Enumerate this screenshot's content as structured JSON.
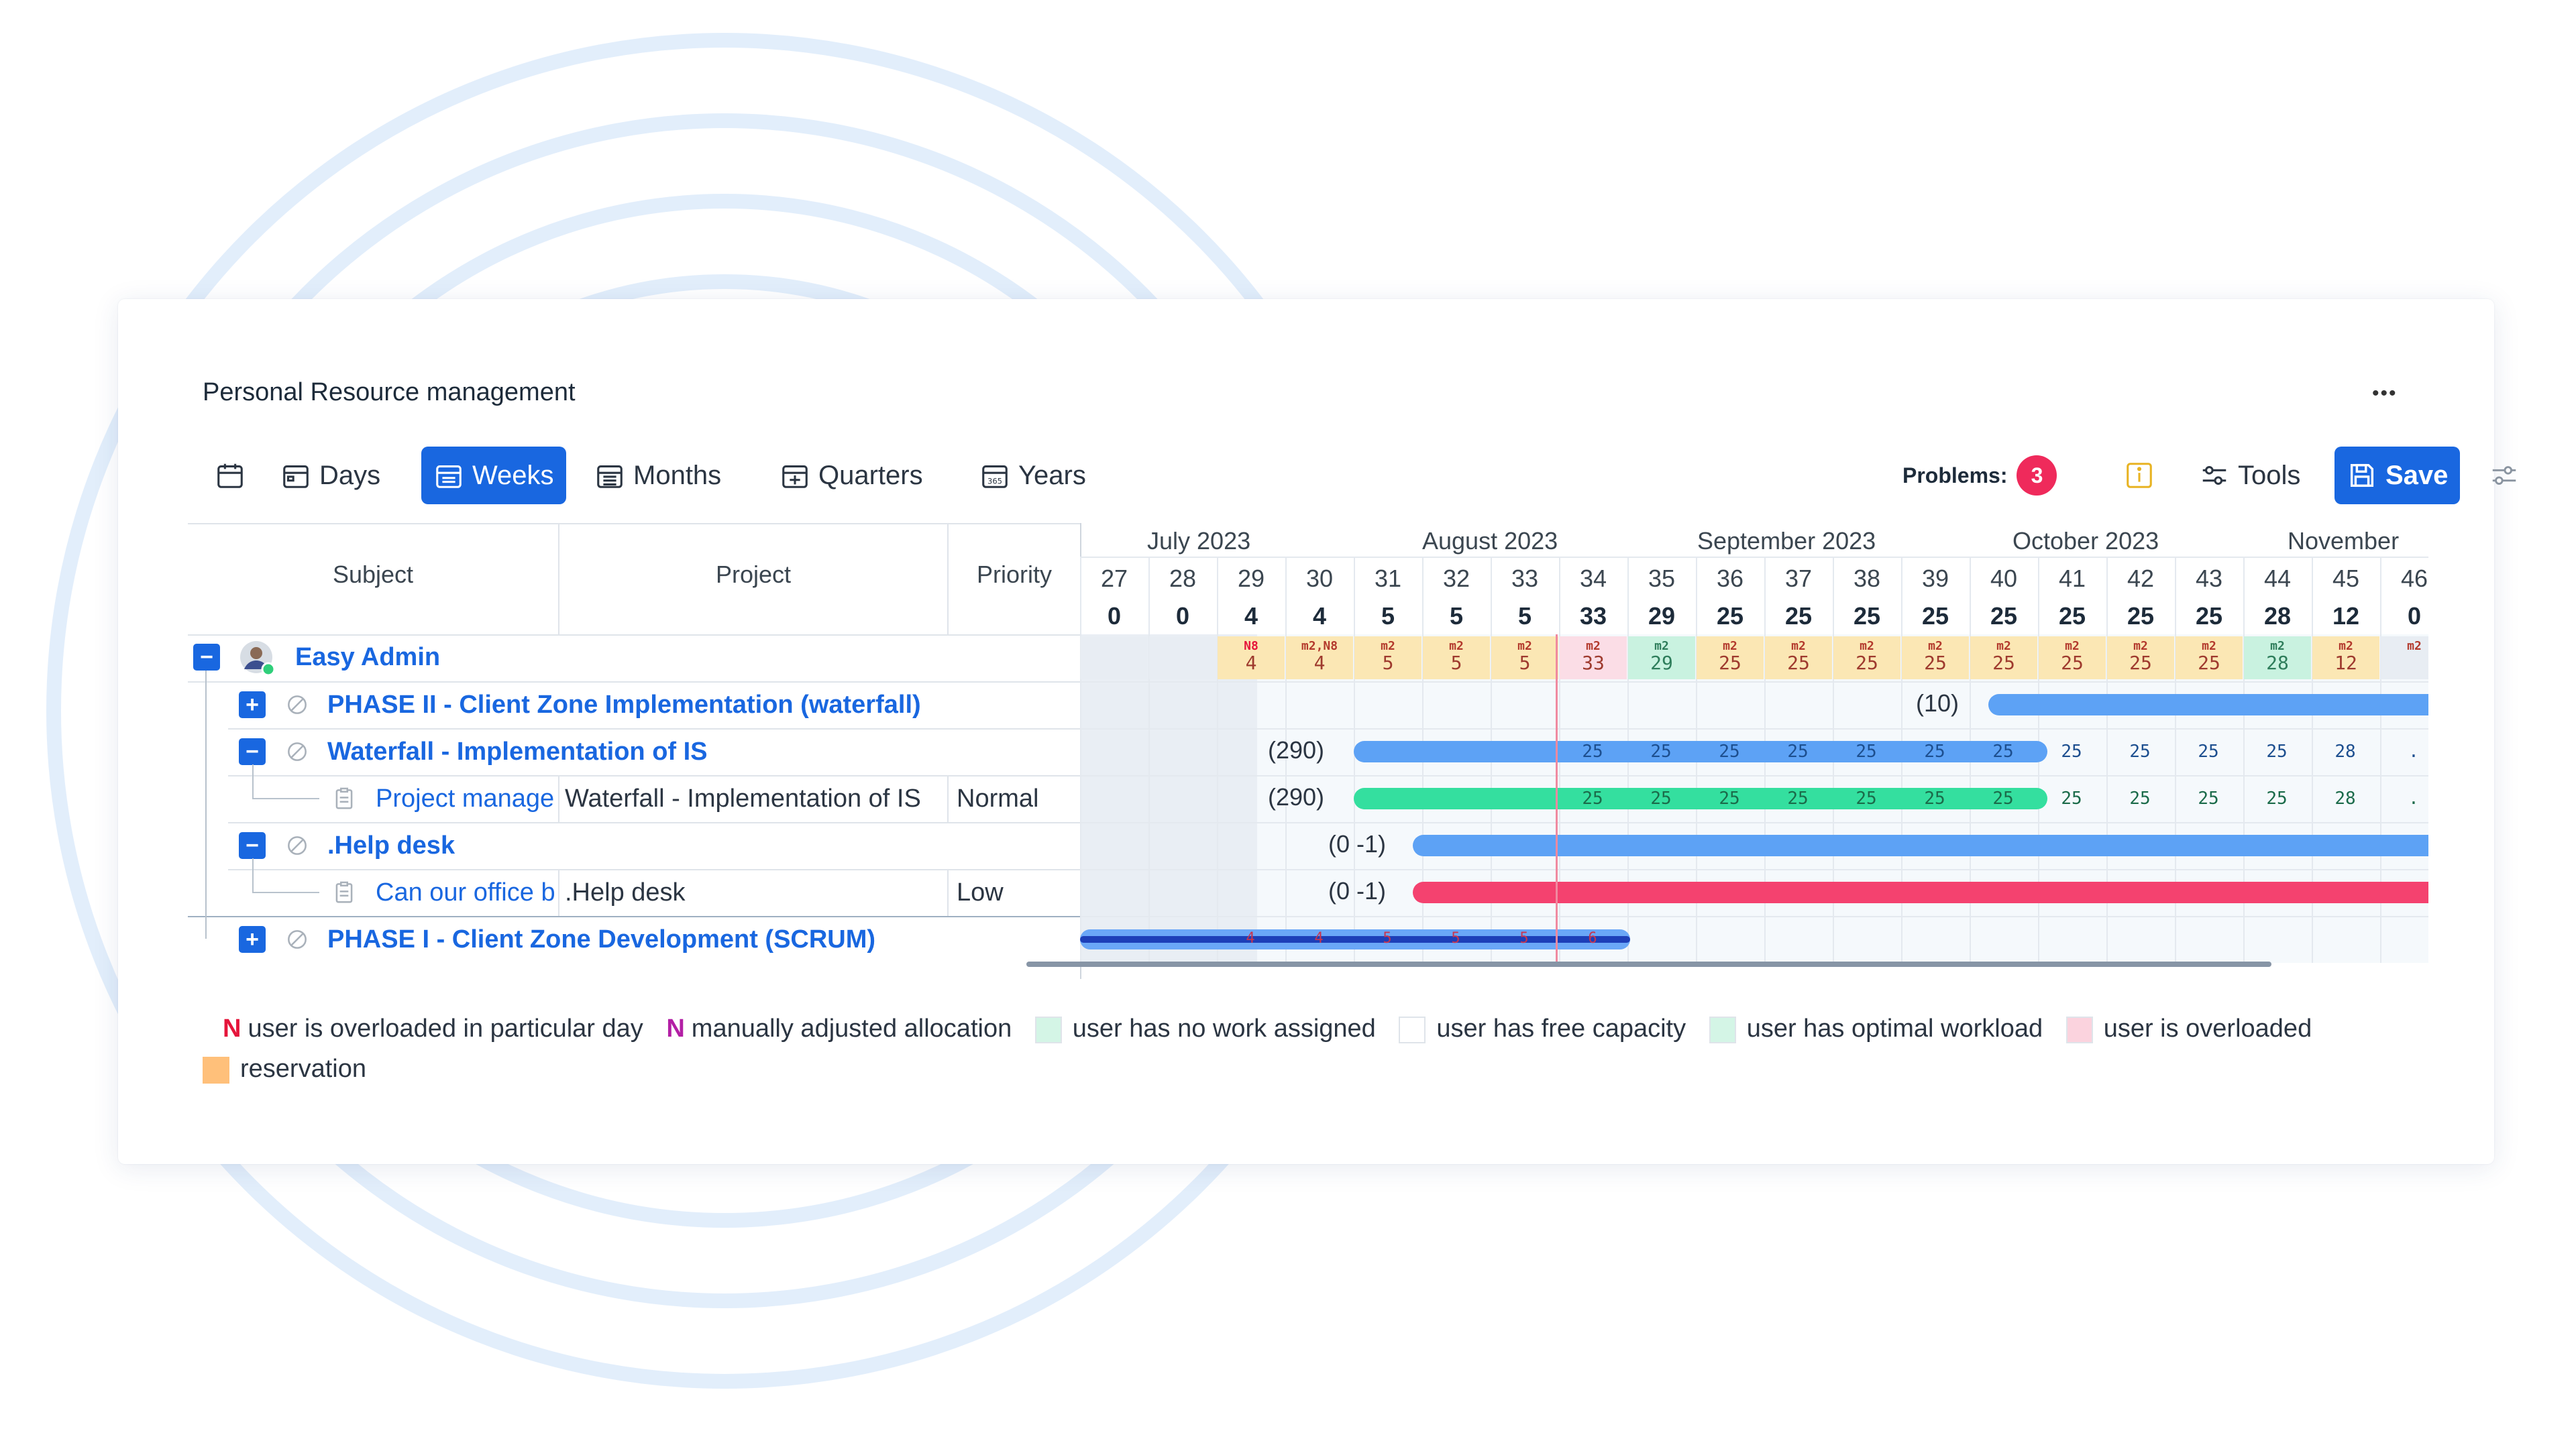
{
  "app": {
    "title": "Personal Resource management",
    "more_label": "•••"
  },
  "toolbar": {
    "days_label": "Days",
    "weeks_label": "Weeks",
    "months_label": "Months",
    "quarters_label": "Quarters",
    "years_label": "Years",
    "problems_label": "Problems:",
    "problems_count": "3",
    "tools_label": "Tools",
    "save_label": "Save",
    "accent": "#1967e0"
  },
  "columns": {
    "subject": "Subject",
    "project": "Project",
    "priority": "Priority"
  },
  "months": [
    "July 2023",
    "August 2023",
    "September 2023",
    "October 2023",
    "November"
  ],
  "weeks": [
    "27",
    "28",
    "29",
    "30",
    "31",
    "32",
    "33",
    "34",
    "35",
    "36",
    "37",
    "38",
    "39",
    "40",
    "41",
    "42",
    "43",
    "44",
    "45",
    "46"
  ],
  "totals": [
    "0",
    "0",
    "4",
    "4",
    "5",
    "5",
    "5",
    "33",
    "29",
    "25",
    "25",
    "25",
    "25",
    "25",
    "25",
    "25",
    "25",
    "28",
    "12",
    "0"
  ],
  "user_cells": [
    {
      "tag": "",
      "value": "",
      "color": "#e8edf3"
    },
    {
      "tag": "",
      "value": "",
      "color": "#e8edf3"
    },
    {
      "tag": "N8",
      "value": "4",
      "color": "#fbe7b4"
    },
    {
      "tag": "m2,N8",
      "value": "4",
      "color": "#fbe7b4"
    },
    {
      "tag": "m2",
      "value": "5",
      "color": "#fbe7b4"
    },
    {
      "tag": "m2",
      "value": "5",
      "color": "#fbe7b4"
    },
    {
      "tag": "m2",
      "value": "5",
      "color": "#fbe7b4"
    },
    {
      "tag": "m2",
      "value": "33",
      "color": "#fbdde6"
    },
    {
      "tag": "m2",
      "value": "29",
      "color": "#c9f2e0"
    },
    {
      "tag": "m2",
      "value": "25",
      "color": "#fbe7b4"
    },
    {
      "tag": "m2",
      "value": "25",
      "color": "#fbe7b4"
    },
    {
      "tag": "m2",
      "value": "25",
      "color": "#fbe7b4"
    },
    {
      "tag": "m2",
      "value": "25",
      "color": "#fbe7b4"
    },
    {
      "tag": "m2",
      "value": "25",
      "color": "#fbe7b4"
    },
    {
      "tag": "m2",
      "value": "25",
      "color": "#fbe7b4"
    },
    {
      "tag": "m2",
      "value": "25",
      "color": "#fbe7b4"
    },
    {
      "tag": "m2",
      "value": "25",
      "color": "#fbe7b4"
    },
    {
      "tag": "m2",
      "value": "28",
      "color": "#c9f2e0"
    },
    {
      "tag": "m2",
      "value": "12",
      "color": "#fbe7b4"
    },
    {
      "tag": "m2",
      "value": "",
      "color": "#e8edf3"
    }
  ],
  "rows": {
    "user": {
      "name": "Easy Admin"
    },
    "phase2": {
      "name": "PHASE II - Client Zone Implementation (waterfall)",
      "summary": "(10)"
    },
    "waterfall": {
      "name": "Waterfall - Implementation of IS",
      "summary": "(290)",
      "bar_values": [
        "25",
        "25",
        "25",
        "25",
        "25",
        "25",
        "25",
        "25",
        "25",
        "25",
        "25",
        "28",
        "."
      ]
    },
    "pm_task": {
      "name": "Project manage",
      "project": "Waterfall - Implementation of IS",
      "priority": "Normal",
      "summary": "(290)",
      "bar_values": [
        "25",
        "25",
        "25",
        "25",
        "25",
        "25",
        "25",
        "25",
        "25",
        "25",
        "25",
        "28",
        "."
      ]
    },
    "helpdesk": {
      "name": ".Help desk",
      "summary": "(0 -1)"
    },
    "office_task": {
      "name": "Can our office b",
      "project": ".Help desk",
      "priority": "Low",
      "summary": "(0 -1)"
    },
    "phase1": {
      "name": "PHASE I - Client Zone Development (SCRUM)",
      "bar_values": [
        "4",
        "4",
        "5",
        "5",
        "5",
        "6"
      ]
    }
  },
  "legend": {
    "n_symbol": "N",
    "overloaded_day": "user is overloaded in particular day",
    "manual": "manually adjusted allocation",
    "no_work": "user has no work assigned",
    "free_capacity": "user has free capacity",
    "optimal": "user has optimal workload",
    "overloaded": "user is overloaded",
    "reservation": "reservation",
    "colors": {
      "n_red": "#e5153b",
      "n_purple": "#b31fa5",
      "no_work": "#d4f5e6",
      "free": "#ffffff",
      "optimal": "#d4f5e6",
      "overloaded": "#fbd3de",
      "reservation": "#ffc07a"
    }
  }
}
